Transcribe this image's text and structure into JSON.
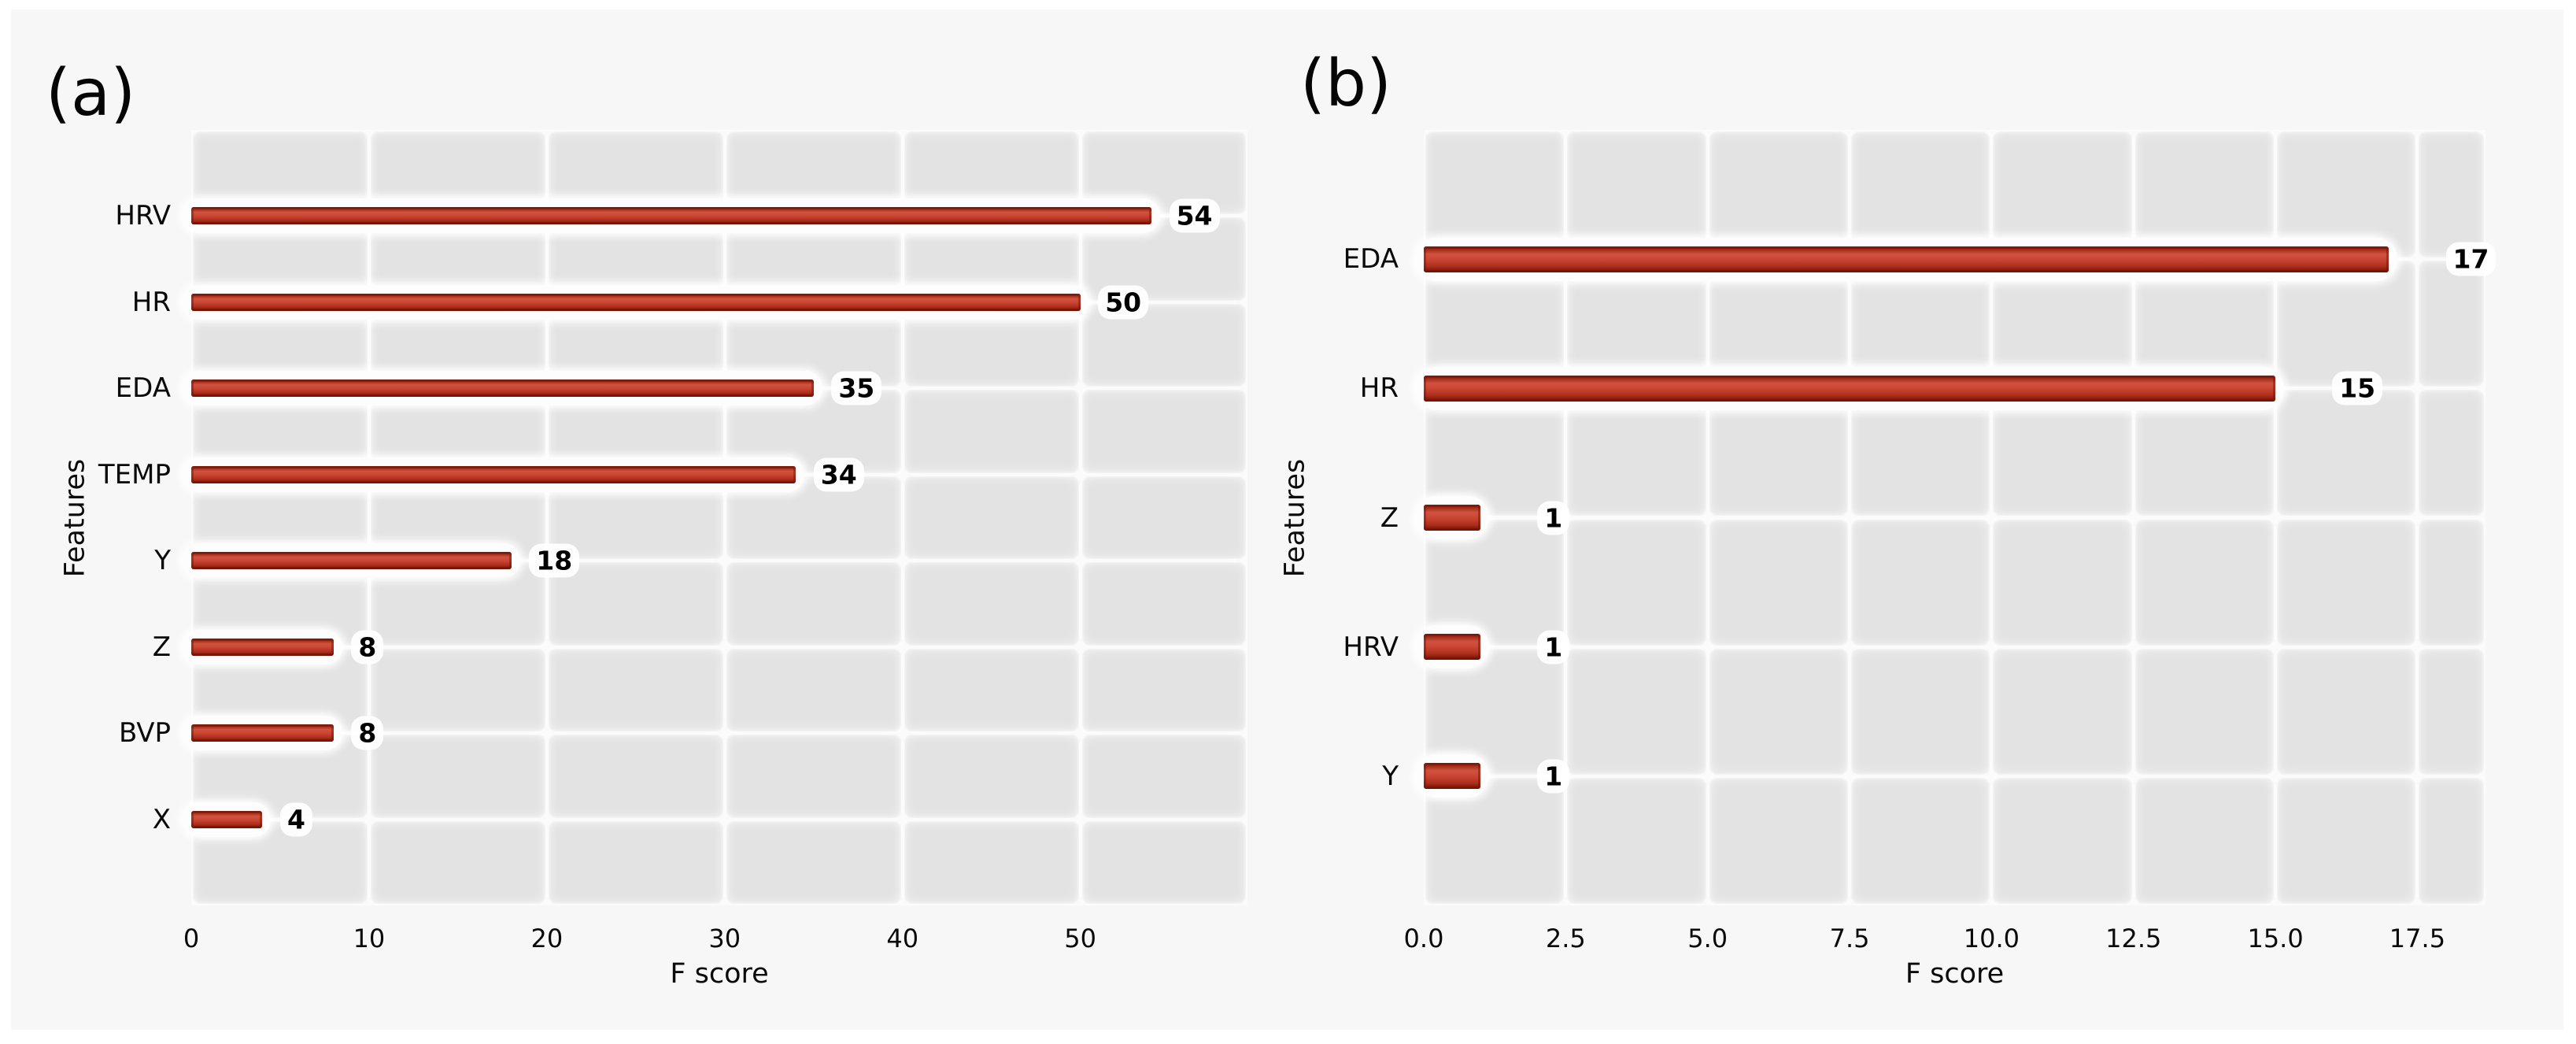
{
  "figure": {
    "background": "#f7f7f7",
    "outer_background": "#ffffff",
    "plot_background": "#e3e3e3",
    "grid_color": "#ffffff",
    "bar_color": "#c0392b",
    "bar_color_dark": "#7a1608",
    "bar_color_light": "#d0523f",
    "text_color": "#0a0a0a"
  },
  "chart_data": [
    {
      "type": "bar",
      "orientation": "horizontal",
      "panel_label": "(a)",
      "title": "",
      "xlabel": "F score",
      "ylabel": "Features",
      "categories": [
        "HRV",
        "HR",
        "EDA",
        "TEMP",
        "Y",
        "Z",
        "BVP",
        "X"
      ],
      "values": [
        54,
        50,
        35,
        34,
        18,
        8,
        8,
        4
      ],
      "value_labels": [
        "54",
        "50",
        "35",
        "34",
        "18",
        "8",
        "8",
        "4"
      ],
      "xtick_values": [
        0,
        10,
        20,
        30,
        40,
        50
      ],
      "xtick_labels": [
        "0",
        "10",
        "20",
        "30",
        "40",
        "50"
      ],
      "xlim": [
        0,
        59.4
      ],
      "grid": true,
      "legend": false
    },
    {
      "type": "bar",
      "orientation": "horizontal",
      "panel_label": "(b)",
      "title": "",
      "xlabel": "F score",
      "ylabel": "Features",
      "categories": [
        "EDA",
        "HR",
        "Z",
        "HRV",
        "Y"
      ],
      "values": [
        17,
        15,
        1,
        1,
        1
      ],
      "value_labels": [
        "17",
        "15",
        "1",
        "1",
        "1"
      ],
      "xtick_values": [
        0,
        2.5,
        5,
        7.5,
        10,
        12.5,
        15,
        17.5
      ],
      "xtick_labels": [
        "0.0",
        "2.5",
        "5.0",
        "7.5",
        "10.0",
        "12.5",
        "15.0",
        "17.5"
      ],
      "xlim": [
        0,
        18.7
      ],
      "grid": true,
      "legend": false
    }
  ]
}
